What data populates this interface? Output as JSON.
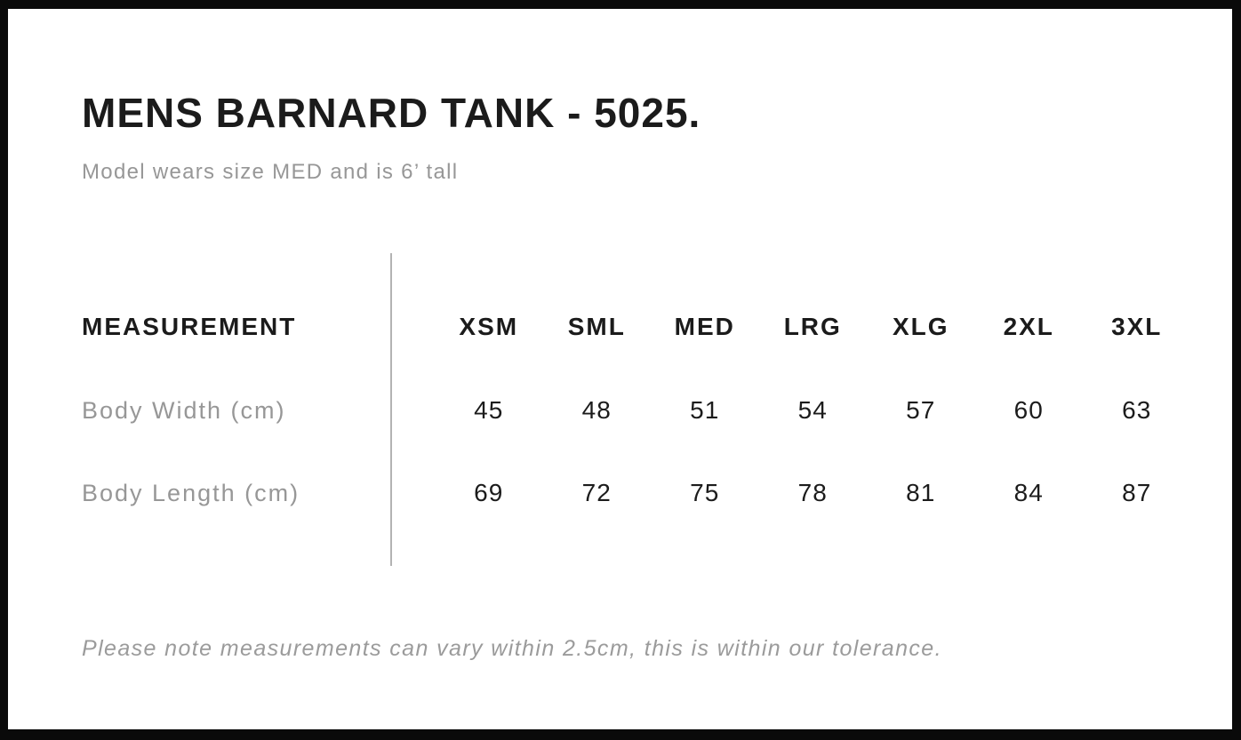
{
  "page": {
    "title": "MENS BARNARD TANK - 5025.",
    "subtitle": "Model wears size MED and is 6’ tall",
    "footnote": "Please note measurements can vary within 2.5cm, this is within our tolerance."
  },
  "table": {
    "measurement_label": "MEASUREMENT",
    "sizes": [
      "XSM",
      "SML",
      "MED",
      "LRG",
      "XLG",
      "2XL",
      "3XL"
    ],
    "rows": [
      {
        "label": "Body Width (cm)",
        "values": [
          "45",
          "48",
          "51",
          "54",
          "57",
          "60",
          "63"
        ]
      },
      {
        "label": "Body Length (cm)",
        "values": [
          "69",
          "72",
          "75",
          "78",
          "81",
          "84",
          "87"
        ]
      }
    ]
  },
  "colors": {
    "background": "#ffffff",
    "border": "#0a0a0a",
    "heading_text": "#1b1b1b",
    "value_text": "#1c1c1c",
    "muted_text": "#979797",
    "divider": "#b3b3b3"
  }
}
